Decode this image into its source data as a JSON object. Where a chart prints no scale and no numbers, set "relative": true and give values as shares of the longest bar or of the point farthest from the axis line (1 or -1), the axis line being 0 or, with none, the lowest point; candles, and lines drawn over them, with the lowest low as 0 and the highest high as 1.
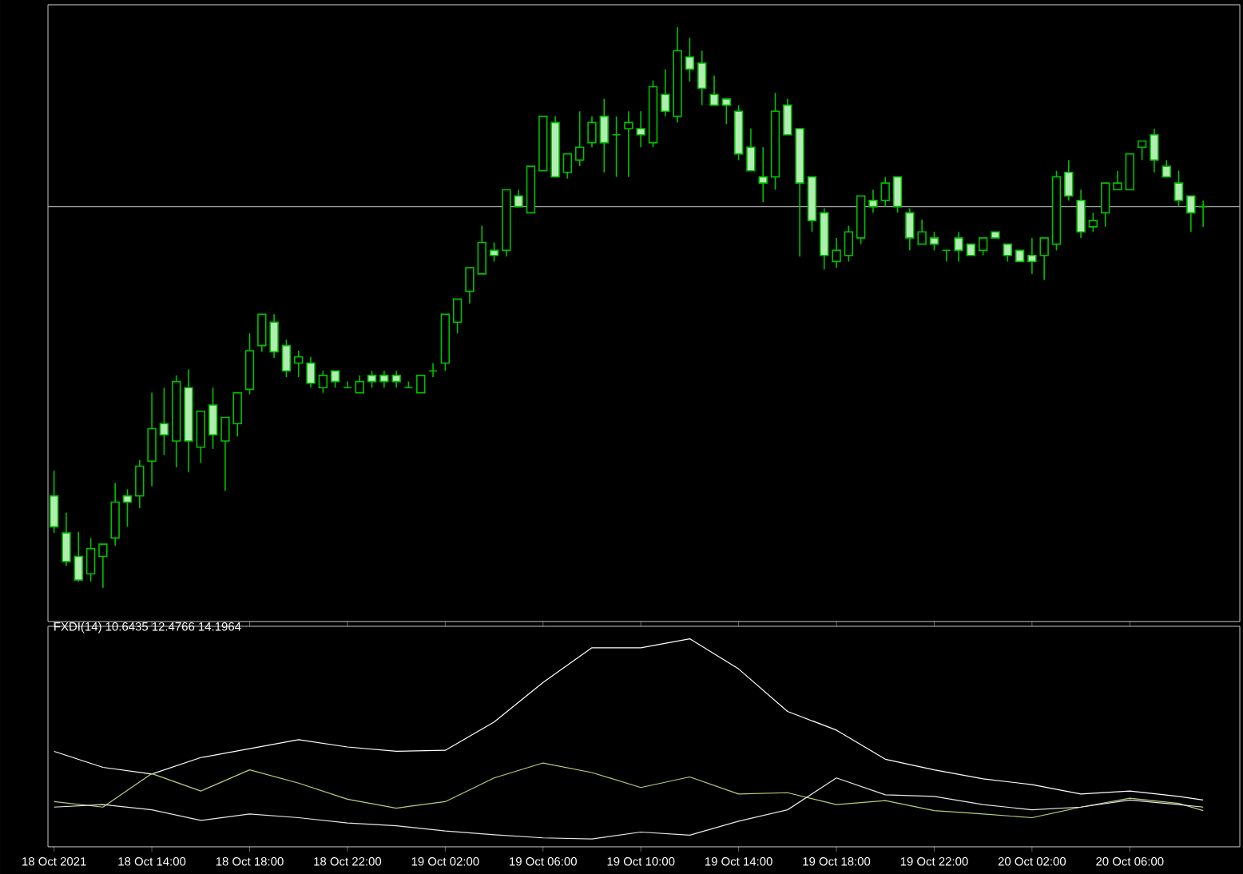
{
  "chart_data": [
    {
      "type": "candlestick",
      "relative": true,
      "color": "#00c000",
      "tick_labels": false,
      "xlim": [
        "2021-10-18T09:45",
        "2021-10-20T10:30"
      ],
      "ref_lines": [
        {
          "axis": "y",
          "value": 0.68,
          "color": "#a0a0a0"
        }
      ],
      "x": [
        "2021-10-18T10:00",
        "2021-10-18T10:30",
        "2021-10-18T11:00",
        "2021-10-18T11:30",
        "2021-10-18T12:00",
        "2021-10-18T12:30",
        "2021-10-18T13:00",
        "2021-10-18T13:30",
        "2021-10-18T14:00",
        "2021-10-18T14:30",
        "2021-10-18T15:00",
        "2021-10-18T15:30",
        "2021-10-18T16:00",
        "2021-10-18T16:30",
        "2021-10-18T17:00",
        "2021-10-18T17:30",
        "2021-10-18T18:00",
        "2021-10-18T18:30",
        "2021-10-18T19:00",
        "2021-10-18T19:30",
        "2021-10-18T20:00",
        "2021-10-18T20:30",
        "2021-10-18T21:00",
        "2021-10-18T21:30",
        "2021-10-18T22:00",
        "2021-10-18T22:30",
        "2021-10-18T23:00",
        "2021-10-18T23:30",
        "2021-10-19T00:00",
        "2021-10-19T00:30",
        "2021-10-19T01:00",
        "2021-10-19T01:30",
        "2021-10-19T02:00",
        "2021-10-19T02:30",
        "2021-10-19T03:00",
        "2021-10-19T03:30",
        "2021-10-19T04:00",
        "2021-10-19T04:30",
        "2021-10-19T05:00",
        "2021-10-19T05:30",
        "2021-10-19T06:00",
        "2021-10-19T06:30",
        "2021-10-19T07:00",
        "2021-10-19T07:30",
        "2021-10-19T08:00",
        "2021-10-19T08:30",
        "2021-10-19T09:00",
        "2021-10-19T09:30",
        "2021-10-19T10:00",
        "2021-10-19T10:30",
        "2021-10-19T11:00",
        "2021-10-19T11:30",
        "2021-10-19T12:00",
        "2021-10-19T12:30",
        "2021-10-19T13:00",
        "2021-10-19T13:30",
        "2021-10-19T14:00",
        "2021-10-19T14:30",
        "2021-10-19T15:00",
        "2021-10-19T15:30",
        "2021-10-19T16:00",
        "2021-10-19T16:30",
        "2021-10-19T17:00",
        "2021-10-19T17:30",
        "2021-10-19T18:00",
        "2021-10-19T18:30",
        "2021-10-19T19:00",
        "2021-10-19T19:30",
        "2021-10-19T20:00",
        "2021-10-19T20:30",
        "2021-10-19T21:00",
        "2021-10-19T21:30",
        "2021-10-19T22:00",
        "2021-10-19T22:30",
        "2021-10-19T23:00",
        "2021-10-19T23:30",
        "2021-10-20T00:00",
        "2021-10-20T00:30",
        "2021-10-20T01:00",
        "2021-10-20T01:30",
        "2021-10-20T02:00",
        "2021-10-20T02:30",
        "2021-10-20T03:00",
        "2021-10-20T03:30",
        "2021-10-20T04:00",
        "2021-10-20T04:30",
        "2021-10-20T05:00",
        "2021-10-20T05:30",
        "2021-10-20T06:00",
        "2021-10-20T06:30",
        "2021-10-20T07:00",
        "2021-10-20T07:30",
        "2021-10-20T08:00",
        "2021-10-20T08:30",
        "2021-10-20T09:00"
      ],
      "ohlc": [
        [
          0.164,
          0.209,
          0.098,
          0.109
        ],
        [
          0.098,
          0.134,
          0.039,
          0.047
        ],
        [
          0.056,
          0.1,
          0.011,
          0.014
        ],
        [
          0.025,
          0.089,
          0.011,
          0.07
        ],
        [
          0.056,
          0.078,
          0,
          0.078
        ],
        [
          0.089,
          0.187,
          0.075,
          0.153
        ],
        [
          0.164,
          0.176,
          0.109,
          0.153
        ],
        [
          0.164,
          0.228,
          0.142,
          0.217
        ],
        [
          0.226,
          0.348,
          0.181,
          0.284
        ],
        [
          0.293,
          0.357,
          0.237,
          0.273
        ],
        [
          0.262,
          0.379,
          0.215,
          0.368
        ],
        [
          0.357,
          0.39,
          0.206,
          0.262
        ],
        [
          0.251,
          0.315,
          0.223,
          0.315
        ],
        [
          0.326,
          0.357,
          0.248,
          0.273
        ],
        [
          0.262,
          0.304,
          0.173,
          0.304
        ],
        [
          0.293,
          0.348,
          0.27,
          0.348
        ],
        [
          0.354,
          0.454,
          0.345,
          0.423
        ],
        [
          0.432,
          0.488,
          0.421,
          0.488
        ],
        [
          0.474,
          0.488,
          0.41,
          0.421
        ],
        [
          0.432,
          0.443,
          0.376,
          0.387
        ],
        [
          0.401,
          0.423,
          0.376,
          0.412
        ],
        [
          0.401,
          0.412,
          0.357,
          0.365
        ],
        [
          0.357,
          0.387,
          0.348,
          0.379
        ],
        [
          0.387,
          0.387,
          0.357,
          0.368
        ],
        [
          0.357,
          0.368,
          0.357,
          0.357
        ],
        [
          0.348,
          0.379,
          0.348,
          0.368
        ],
        [
          0.379,
          0.387,
          0.357,
          0.368
        ],
        [
          0.379,
          0.387,
          0.357,
          0.368
        ],
        [
          0.379,
          0.387,
          0.357,
          0.368
        ],
        [
          0.357,
          0.368,
          0.357,
          0.357
        ],
        [
          0.348,
          0.379,
          0.348,
          0.379
        ],
        [
          0.387,
          0.401,
          0.376,
          0.387
        ],
        [
          0.401,
          0.488,
          0.387,
          0.488
        ],
        [
          0.474,
          0.515,
          0.454,
          0.515
        ],
        [
          0.529,
          0.571,
          0.507,
          0.571
        ],
        [
          0.56,
          0.646,
          0.56,
          0.616
        ],
        [
          0.602,
          0.616,
          0.582,
          0.593
        ],
        [
          0.602,
          0.71,
          0.591,
          0.71
        ],
        [
          0.699,
          0.71,
          0.68,
          0.68
        ],
        [
          0.669,
          0.752,
          0.669,
          0.752
        ],
        [
          0.744,
          0.841,
          0.744,
          0.841
        ],
        [
          0.83,
          0.841,
          0.733,
          0.733
        ],
        [
          0.741,
          0.774,
          0.73,
          0.774
        ],
        [
          0.763,
          0.85,
          0.752,
          0.786
        ],
        [
          0.794,
          0.841,
          0.786,
          0.83
        ],
        [
          0.841,
          0.872,
          0.741,
          0.794
        ],
        [
          0.808,
          0.841,
          0.733,
          0.808
        ],
        [
          0.819,
          0.85,
          0.733,
          0.83
        ],
        [
          0.819,
          0.85,
          0.786,
          0.808
        ],
        [
          0.794,
          0.905,
          0.786,
          0.894
        ],
        [
          0.88,
          0.925,
          0.841,
          0.85
        ],
        [
          0.841,
          1,
          0.83,
          0.958
        ],
        [
          0.947,
          0.981,
          0.903,
          0.925
        ],
        [
          0.936,
          0.958,
          0.861,
          0.891
        ],
        [
          0.88,
          0.914,
          0.861,
          0.861
        ],
        [
          0.872,
          0.872,
          0.827,
          0.861
        ],
        [
          0.85,
          0.861,
          0.763,
          0.774
        ],
        [
          0.786,
          0.819,
          0.744,
          0.744
        ],
        [
          0.733,
          0.786,
          0.688,
          0.722
        ],
        [
          0.733,
          0.883,
          0.71,
          0.85
        ],
        [
          0.861,
          0.872,
          0.808,
          0.808
        ],
        [
          0.819,
          0.819,
          0.591,
          0.722
        ],
        [
          0.733,
          0.733,
          0.635,
          0.655
        ],
        [
          0.669,
          0.677,
          0.568,
          0.593
        ],
        [
          0.582,
          0.624,
          0.571,
          0.602
        ],
        [
          0.593,
          0.646,
          0.582,
          0.635
        ],
        [
          0.624,
          0.699,
          0.613,
          0.699
        ],
        [
          0.691,
          0.71,
          0.669,
          0.68
        ],
        [
          0.691,
          0.733,
          0.68,
          0.722
        ],
        [
          0.733,
          0.733,
          0.669,
          0.68
        ],
        [
          0.669,
          0.677,
          0.602,
          0.624
        ],
        [
          0.613,
          0.657,
          0.613,
          0.635
        ],
        [
          0.624,
          0.635,
          0.602,
          0.613
        ],
        [
          0.602,
          0.602,
          0.582,
          0.602
        ],
        [
          0.624,
          0.635,
          0.582,
          0.602
        ],
        [
          0.613,
          0.613,
          0.593,
          0.593
        ],
        [
          0.602,
          0.624,
          0.593,
          0.624
        ],
        [
          0.635,
          0.635,
          0.624,
          0.624
        ],
        [
          0.613,
          0.613,
          0.582,
          0.593
        ],
        [
          0.602,
          0.602,
          0.582,
          0.582
        ],
        [
          0.593,
          0.624,
          0.56,
          0.582
        ],
        [
          0.593,
          0.624,
          0.549,
          0.624
        ],
        [
          0.613,
          0.744,
          0.602,
          0.733
        ],
        [
          0.741,
          0.763,
          0.691,
          0.699
        ],
        [
          0.691,
          0.71,
          0.624,
          0.635
        ],
        [
          0.644,
          0.669,
          0.635,
          0.655
        ],
        [
          0.669,
          0.722,
          0.644,
          0.722
        ],
        [
          0.71,
          0.744,
          0.71,
          0.722
        ],
        [
          0.71,
          0.774,
          0.71,
          0.774
        ],
        [
          0.786,
          0.797,
          0.763,
          0.797
        ],
        [
          0.808,
          0.819,
          0.741,
          0.763
        ],
        [
          0.752,
          0.763,
          0.733,
          0.733
        ],
        [
          0.722,
          0.744,
          0.68,
          0.691
        ],
        [
          0.699,
          0.699,
          0.635,
          0.669
        ],
        [
          0.68,
          0.691,
          0.644,
          0.68
        ]
      ]
    },
    {
      "type": "line",
      "relative": true,
      "title": "FXDI(14) 10.6435 12.4766 14.1964",
      "tick_labels": "x",
      "xlim": [
        "2021-10-18T09:45",
        "2021-10-20T10:30"
      ],
      "xticks": [
        {
          "value": "2021-10-18T10:00",
          "label": "18 Oct 2021"
        },
        {
          "value": "2021-10-18T14:00",
          "label": "18 Oct 14:00"
        },
        {
          "value": "2021-10-18T18:00",
          "label": "18 Oct 18:00"
        },
        {
          "value": "2021-10-18T22:00",
          "label": "18 Oct 22:00"
        },
        {
          "value": "2021-10-19T02:00",
          "label": "19 Oct 02:00"
        },
        {
          "value": "2021-10-19T06:00",
          "label": "19 Oct 06:00"
        },
        {
          "value": "2021-10-19T10:00",
          "label": "19 Oct 10:00"
        },
        {
          "value": "2021-10-19T14:00",
          "label": "19 Oct 14:00"
        },
        {
          "value": "2021-10-19T18:00",
          "label": "19 Oct 18:00"
        },
        {
          "value": "2021-10-19T22:00",
          "label": "19 Oct 22:00"
        },
        {
          "value": "2021-10-20T02:00",
          "label": "20 Oct 02:00"
        },
        {
          "value": "2021-10-20T06:00",
          "label": "20 Oct 06:00"
        }
      ],
      "x": [
        "2021-10-18T10:00",
        "2021-10-18T12:00",
        "2021-10-18T14:00",
        "2021-10-18T16:00",
        "2021-10-18T18:00",
        "2021-10-18T20:00",
        "2021-10-18T22:00",
        "2021-10-19T00:00",
        "2021-10-19T02:00",
        "2021-10-19T04:00",
        "2021-10-19T06:00",
        "2021-10-19T08:00",
        "2021-10-19T10:00",
        "2021-10-19T12:00",
        "2021-10-19T14:00",
        "2021-10-19T16:00",
        "2021-10-19T18:00",
        "2021-10-19T20:00",
        "2021-10-19T22:00",
        "2021-10-20T00:00",
        "2021-10-20T02:00",
        "2021-10-20T04:00",
        "2021-10-20T06:00",
        "2021-10-20T08:00",
        "2021-10-20T09:00"
      ],
      "series": [
        {
          "color": "#ffffff",
          "values": [
            0.459,
            0.382,
            0.35,
            0.429,
            0.472,
            0.515,
            0.48,
            0.459,
            0.464,
            0.6,
            0.79,
            0.957,
            0.957,
            1,
            0.855,
            0.651,
            0.561,
            0.421,
            0.37,
            0.327,
            0.299,
            0.254,
            0.268,
            0.242,
            0.225
          ]
        },
        {
          "color": "#b5d07a",
          "values": [
            0.217,
            0.191,
            0.352,
            0.268,
            0.37,
            0.306,
            0.229,
            0.186,
            0.217,
            0.331,
            0.403,
            0.357,
            0.285,
            0.336,
            0.254,
            0.26,
            0.203,
            0.222,
            0.174,
            0.158,
            0.14,
            0.191,
            0.234,
            0.209,
            0.174
          ]
        },
        {
          "color": "#e8e8e8",
          "values": [
            0.191,
            0.203,
            0.178,
            0.127,
            0.158,
            0.14,
            0.115,
            0.101,
            0.076,
            0.058,
            0.043,
            0.038,
            0.071,
            0.056,
            0.123,
            0.178,
            0.331,
            0.25,
            0.242,
            0.203,
            0.178,
            0.191,
            0.225,
            0.203,
            0.191
          ]
        }
      ]
    }
  ]
}
